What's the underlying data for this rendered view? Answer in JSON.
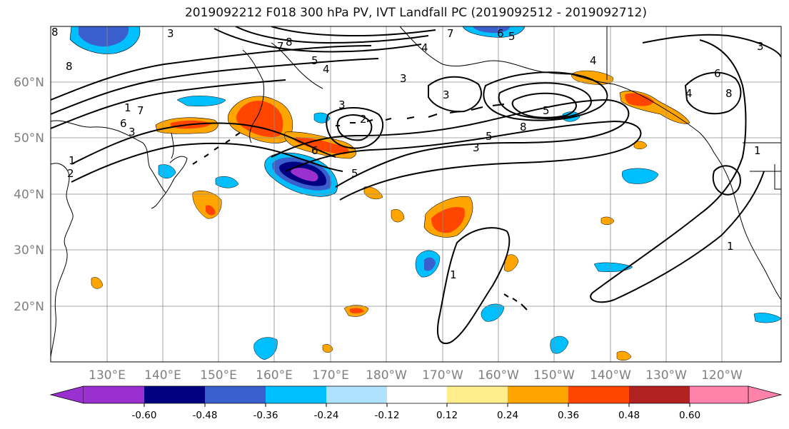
{
  "title": "2019092212 F018 300 hPa PV, IVT Landfall PC (2019092512 - 2019092712)",
  "latitude_labels": [
    "60°N",
    "50°N",
    "40°N",
    "30°N",
    "20°N"
  ],
  "longitude_labels": [
    "130°E",
    "140°E",
    "150°E",
    "160°E",
    "170°E",
    "180°W",
    "170°W",
    "160°W",
    "150°W",
    "140°W",
    "130°W",
    "120°W"
  ],
  "colorbar": {
    "colors": [
      "#9b30d0",
      "#000080",
      "#3a5fcd",
      "#00bfff",
      "#b0e2ff",
      "#ffffff",
      "#ffec8b",
      "#ffa500",
      "#ff4500",
      "#b22222",
      "#ff82ab"
    ],
    "tick_labels": [
      "-0.60",
      "-0.48",
      "-0.36",
      "-0.24",
      "-0.12",
      "0.12",
      "0.24",
      "0.36",
      "0.48",
      "0.60"
    ]
  },
  "contour_labels": [
    "8",
    "8",
    "1",
    "7",
    "6",
    "3",
    "1",
    "2",
    "7",
    "8",
    "5",
    "4",
    "3",
    "3",
    "3",
    "2",
    "6",
    "5",
    "7",
    "6",
    "8",
    "5",
    "3",
    "4",
    "3",
    "6",
    "4",
    "8",
    "1",
    "1",
    "1",
    "5",
    "4",
    "5",
    "3"
  ],
  "field_colors": {
    "blue_dark": "#000080",
    "blue_mid": "#3a5fcd",
    "blue_light": "#00bfff",
    "purple": "#9b30d0",
    "yellow": "#ffec8b",
    "orange": "#ffa500",
    "red_orange": "#ff4500",
    "dark_red": "#b22222"
  }
}
